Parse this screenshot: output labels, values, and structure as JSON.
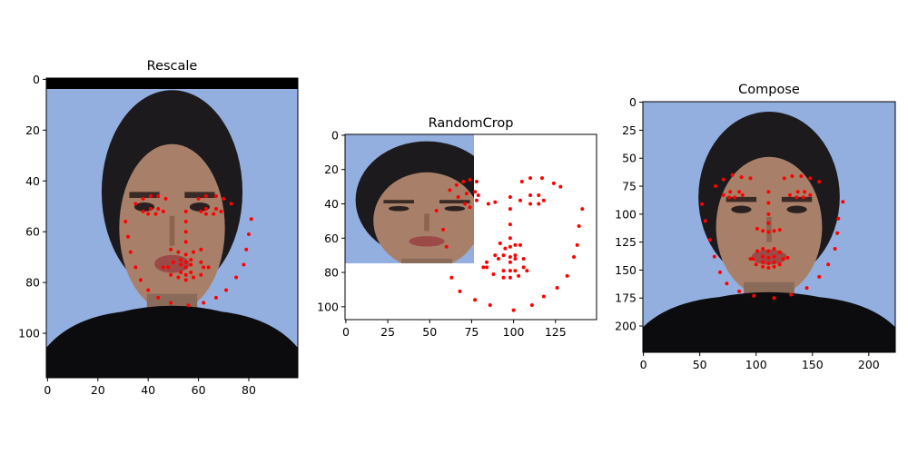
{
  "chart_data": [
    {
      "type": "scatter",
      "title": "Rescale",
      "xlim": [
        -0.5,
        99.5
      ],
      "ylim": [
        117.5,
        -0.5
      ],
      "xticks": [
        0,
        20,
        40,
        60,
        80
      ],
      "yticks": [
        0,
        20,
        40,
        60,
        80,
        100
      ],
      "xlabel": "",
      "ylabel": "",
      "image_extent": [
        100,
        118
      ],
      "marker_color": "#ff0000",
      "points": [
        [
          31,
          56
        ],
        [
          32,
          62
        ],
        [
          33,
          68
        ],
        [
          35,
          74
        ],
        [
          37,
          79
        ],
        [
          40,
          83
        ],
        [
          44,
          86
        ],
        [
          49,
          88
        ],
        [
          56,
          89
        ],
        [
          62,
          88
        ],
        [
          67,
          86
        ],
        [
          71,
          83
        ],
        [
          75,
          78
        ],
        [
          78,
          73
        ],
        [
          79,
          67
        ],
        [
          80,
          61
        ],
        [
          81,
          55
        ],
        [
          35,
          49
        ],
        [
          38,
          47
        ],
        [
          41,
          46
        ],
        [
          44,
          46
        ],
        [
          47,
          47
        ],
        [
          60,
          47
        ],
        [
          63,
          46
        ],
        [
          67,
          46
        ],
        [
          70,
          47
        ],
        [
          73,
          49
        ],
        [
          55,
          52
        ],
        [
          55,
          56
        ],
        [
          55,
          60
        ],
        [
          55,
          64
        ],
        [
          49,
          67
        ],
        [
          52,
          68
        ],
        [
          55,
          69
        ],
        [
          58,
          68
        ],
        [
          61,
          67
        ],
        [
          38,
          52
        ],
        [
          41,
          51
        ],
        [
          44,
          51
        ],
        [
          46,
          52
        ],
        [
          43,
          53
        ],
        [
          40,
          53
        ],
        [
          61,
          52
        ],
        [
          63,
          51
        ],
        [
          67,
          51
        ],
        [
          69,
          52
        ],
        [
          66,
          53
        ],
        [
          63,
          53
        ],
        [
          46,
          74
        ],
        [
          50,
          72
        ],
        [
          53,
          71
        ],
        [
          55,
          72
        ],
        [
          57,
          71
        ],
        [
          61,
          72
        ],
        [
          64,
          74
        ],
        [
          61,
          77
        ],
        [
          58,
          78
        ],
        [
          55,
          79
        ],
        [
          52,
          78
        ],
        [
          49,
          77
        ],
        [
          48,
          74
        ],
        [
          53,
          73
        ],
        [
          55,
          74
        ],
        [
          57,
          73
        ],
        [
          62,
          74
        ],
        [
          57,
          76
        ],
        [
          55,
          77
        ],
        [
          53,
          76
        ]
      ]
    },
    {
      "type": "scatter",
      "title": "RandomCrop",
      "xlim": [
        -0.5,
        149.5
      ],
      "ylim": [
        107.5,
        -0.5
      ],
      "xticks": [
        0,
        25,
        50,
        75,
        100,
        125
      ],
      "yticks": [
        0,
        20,
        40,
        60,
        80,
        100
      ],
      "xlabel": "",
      "ylabel": "",
      "image_extent": [
        75,
        75
      ],
      "marker_color": "#ff0000",
      "points": [
        [
          54,
          44
        ],
        [
          58,
          55
        ],
        [
          60,
          65
        ],
        [
          63,
          83
        ],
        [
          68,
          91
        ],
        [
          77,
          96
        ],
        [
          86,
          99
        ],
        [
          100,
          102
        ],
        [
          111,
          99
        ],
        [
          118,
          94
        ],
        [
          126,
          89
        ],
        [
          132,
          82
        ],
        [
          136,
          71
        ],
        [
          138,
          64
        ],
        [
          139,
          53
        ],
        [
          141,
          43
        ],
        [
          62,
          32
        ],
        [
          66,
          29
        ],
        [
          70,
          27
        ],
        [
          74,
          26
        ],
        [
          78,
          27
        ],
        [
          105,
          27
        ],
        [
          110,
          25
        ],
        [
          117,
          25
        ],
        [
          124,
          28
        ],
        [
          128,
          30
        ],
        [
          98,
          36
        ],
        [
          98,
          43
        ],
        [
          98,
          52
        ],
        [
          98,
          60
        ],
        [
          92,
          63
        ],
        [
          95,
          66
        ],
        [
          98,
          65
        ],
        [
          101,
          64
        ],
        [
          104,
          64
        ],
        [
          67,
          36
        ],
        [
          72,
          34
        ],
        [
          77,
          33
        ],
        [
          79,
          35
        ],
        [
          78,
          38
        ],
        [
          71,
          40
        ],
        [
          104,
          38
        ],
        [
          110,
          35
        ],
        [
          115,
          35
        ],
        [
          118,
          38
        ],
        [
          115,
          40
        ],
        [
          110,
          40
        ],
        [
          84,
          74
        ],
        [
          89,
          70
        ],
        [
          94,
          70
        ],
        [
          98,
          71
        ],
        [
          101,
          70
        ],
        [
          106,
          72
        ],
        [
          108,
          79
        ],
        [
          103,
          82
        ],
        [
          98,
          83
        ],
        [
          94,
          83
        ],
        [
          88,
          81
        ],
        [
          84,
          77
        ],
        [
          91,
          72
        ],
        [
          98,
          74
        ],
        [
          101,
          72
        ],
        [
          106,
          77
        ],
        [
          101,
          79
        ],
        [
          98,
          79
        ],
        [
          94,
          79
        ],
        [
          82,
          77
        ],
        [
          89,
          39
        ],
        [
          85,
          40
        ],
        [
          74,
          42
        ]
      ]
    },
    {
      "type": "scatter",
      "title": "Compose",
      "xlim": [
        -0.5,
        223.5
      ],
      "ylim": [
        223.5,
        -0.5
      ],
      "xticks": [
        0,
        50,
        100,
        150,
        200
      ],
      "yticks": [
        0,
        25,
        50,
        75,
        100,
        125,
        150,
        175,
        200
      ],
      "xlabel": "",
      "ylabel": "",
      "image_extent": [
        224,
        224
      ],
      "marker_color": "#ff0000",
      "points": [
        [
          52,
          91
        ],
        [
          55,
          106
        ],
        [
          59,
          123
        ],
        [
          63,
          138
        ],
        [
          68,
          152
        ],
        [
          74,
          162
        ],
        [
          85,
          169
        ],
        [
          98,
          173
        ],
        [
          116,
          175
        ],
        [
          131,
          172
        ],
        [
          145,
          166
        ],
        [
          156,
          156
        ],
        [
          164,
          145
        ],
        [
          170,
          131
        ],
        [
          172,
          117
        ],
        [
          173,
          104
        ],
        [
          177,
          89
        ],
        [
          64,
          75
        ],
        [
          71,
          69
        ],
        [
          79,
          65
        ],
        [
          87,
          67
        ],
        [
          95,
          68
        ],
        [
          125,
          68
        ],
        [
          132,
          66
        ],
        [
          140,
          66
        ],
        [
          148,
          68
        ],
        [
          156,
          71
        ],
        [
          111,
          80
        ],
        [
          111,
          90
        ],
        [
          111,
          100
        ],
        [
          111,
          108
        ],
        [
          101,
          113
        ],
        [
          106,
          115
        ],
        [
          111,
          116
        ],
        [
          116,
          115
        ],
        [
          121,
          114
        ],
        [
          71,
          83
        ],
        [
          77,
          80
        ],
        [
          85,
          80
        ],
        [
          88,
          83
        ],
        [
          81,
          85
        ],
        [
          76,
          85
        ],
        [
          130,
          83
        ],
        [
          137,
          80
        ],
        [
          143,
          80
        ],
        [
          148,
          83
        ],
        [
          142,
          85
        ],
        [
          136,
          85
        ],
        [
          95,
          140
        ],
        [
          101,
          133
        ],
        [
          106,
          131
        ],
        [
          111,
          133
        ],
        [
          116,
          131
        ],
        [
          121,
          134
        ],
        [
          128,
          139
        ],
        [
          121,
          145
        ],
        [
          116,
          147
        ],
        [
          111,
          148
        ],
        [
          106,
          147
        ],
        [
          100,
          145
        ],
        [
          97,
          140
        ],
        [
          106,
          138
        ],
        [
          111,
          139
        ],
        [
          116,
          138
        ],
        [
          124,
          140
        ],
        [
          116,
          143
        ],
        [
          111,
          144
        ],
        [
          106,
          143
        ]
      ]
    }
  ]
}
